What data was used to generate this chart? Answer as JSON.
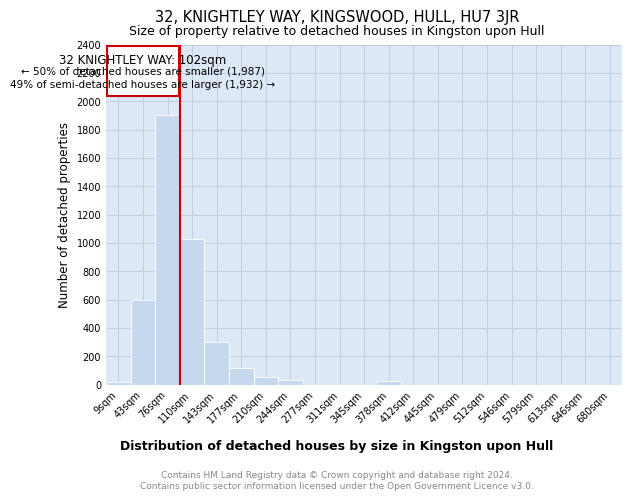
{
  "title": "32, KNIGHTLEY WAY, KINGSWOOD, HULL, HU7 3JR",
  "subtitle": "Size of property relative to detached houses in Kingston upon Hull",
  "xlabel": "Distribution of detached houses by size in Kingston upon Hull",
  "ylabel": "Number of detached properties",
  "categories": [
    "9sqm",
    "43sqm",
    "76sqm",
    "110sqm",
    "143sqm",
    "177sqm",
    "210sqm",
    "244sqm",
    "277sqm",
    "311sqm",
    "345sqm",
    "378sqm",
    "412sqm",
    "445sqm",
    "479sqm",
    "512sqm",
    "546sqm",
    "579sqm",
    "613sqm",
    "646sqm",
    "680sqm"
  ],
  "values": [
    20,
    600,
    1900,
    1030,
    300,
    115,
    50,
    30,
    0,
    0,
    0,
    25,
    0,
    0,
    0,
    0,
    0,
    0,
    0,
    0,
    0
  ],
  "bar_color": "#c5d8ee",
  "grid_color": "#c0d0e0",
  "bg_color": "#dce8f5",
  "annotation_box_color": "#cc0000",
  "annotation_text_color": "#000000",
  "ylim": [
    0,
    2400
  ],
  "yticks": [
    0,
    200,
    400,
    600,
    800,
    1000,
    1200,
    1400,
    1600,
    1800,
    2000,
    2200,
    2400
  ],
  "property_label": "32 KNIGHTLEY WAY: 102sqm",
  "annotation_line1": "← 50% of detached houses are smaller (1,987)",
  "annotation_line2": "49% of semi-detached houses are larger (1,932) →",
  "footer_line1": "Contains HM Land Registry data © Crown copyright and database right 2024.",
  "footer_line2": "Contains public sector information licensed under the Open Government Licence v3.0.",
  "title_fontsize": 10.5,
  "subtitle_fontsize": 9,
  "xlabel_fontsize": 9,
  "ylabel_fontsize": 8.5,
  "tick_fontsize": 7,
  "footer_fontsize": 6.5,
  "annotation_fontsize": 8.5
}
